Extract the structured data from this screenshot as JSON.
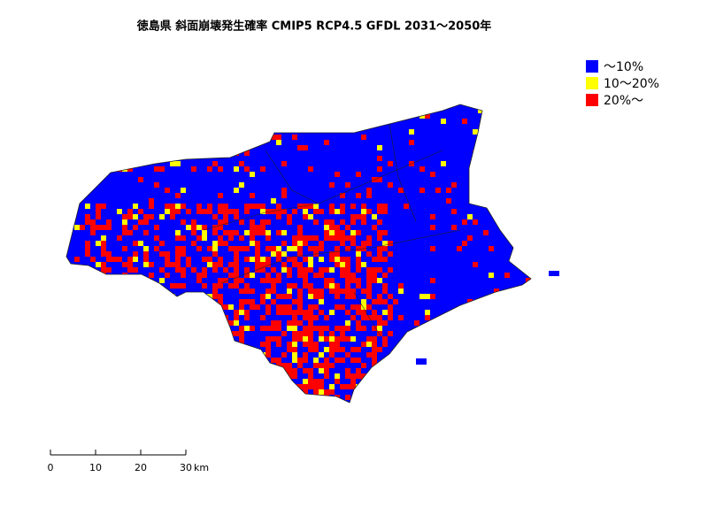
{
  "title": "徳島県 斜面崩壊発生確率 CMIP5 RCP4.5 GFDL 2031～2050年",
  "legend": [
    {
      "label": "～10%",
      "color": "#0000ff"
    },
    {
      "label": "10～20%",
      "color": "#ffff00"
    },
    {
      "label": "20%～",
      "color": "#ff0000"
    }
  ],
  "scale_bar": {
    "ticks": [
      0,
      10,
      20,
      30
    ],
    "unit": "km"
  }
}
